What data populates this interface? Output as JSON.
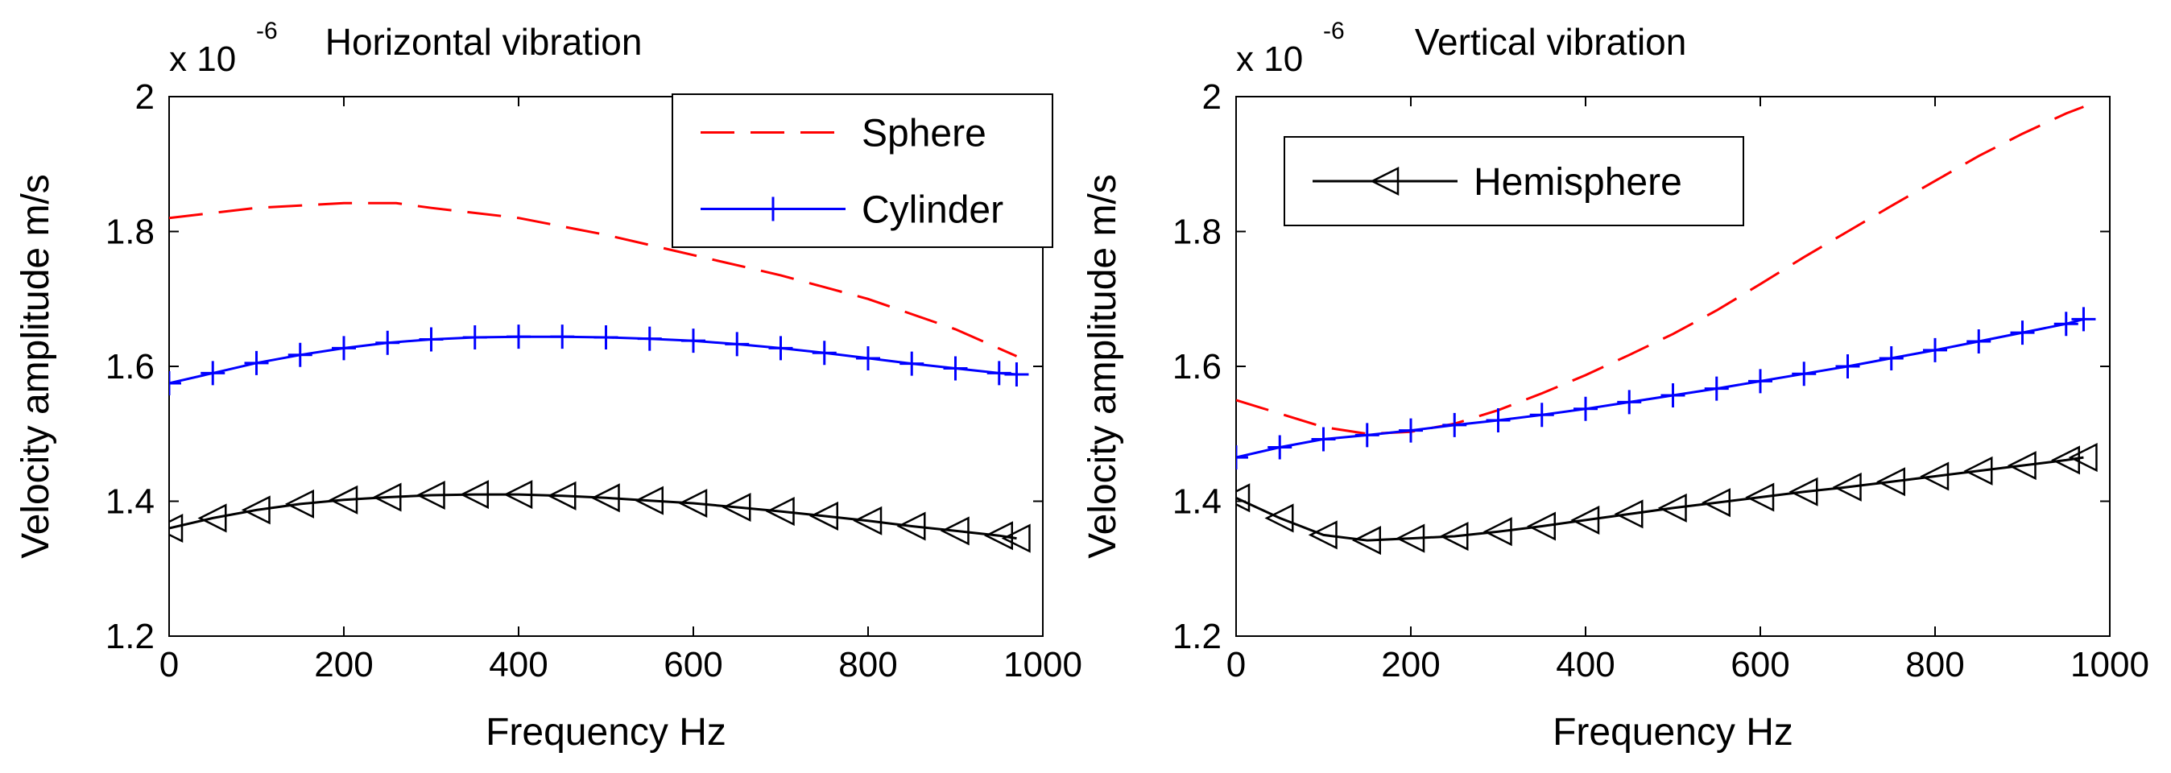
{
  "chart_data": [
    {
      "type": "line",
      "title": "Horizontal vibration",
      "xlabel": "Frequency Hz",
      "ylabel": "Velocity amplitude m/s",
      "scale_label": "x 10",
      "scale_exponent": "-6",
      "xlim": [
        0,
        1000
      ],
      "ylim": [
        1.2,
        2.0
      ],
      "x_ticks": [
        "0",
        "200",
        "400",
        "600",
        "800",
        "1000"
      ],
      "y_ticks": [
        "1.2",
        "1.4",
        "1.6",
        "1.8",
        "2"
      ],
      "legend": [
        "Sphere",
        "Cylinder"
      ],
      "series": [
        {
          "name": "Sphere",
          "color": "#ff0000",
          "style": "dashed",
          "marker": "none",
          "x": [
            0,
            100,
            200,
            260,
            300,
            400,
            500,
            600,
            700,
            800,
            900,
            970
          ],
          "values": [
            1.82,
            1.835,
            1.842,
            1.842,
            1.835,
            1.82,
            1.795,
            1.765,
            1.735,
            1.7,
            1.655,
            1.615
          ]
        },
        {
          "name": "Cylinder",
          "color": "#0000ff",
          "style": "solid",
          "marker": "plus",
          "x": [
            0,
            50,
            100,
            150,
            200,
            250,
            300,
            350,
            400,
            450,
            500,
            550,
            600,
            650,
            700,
            750,
            800,
            850,
            900,
            950,
            970
          ],
          "values": [
            1.575,
            1.59,
            1.605,
            1.617,
            1.627,
            1.635,
            1.64,
            1.643,
            1.644,
            1.644,
            1.643,
            1.641,
            1.638,
            1.633,
            1.627,
            1.62,
            1.612,
            1.604,
            1.597,
            1.59,
            1.588
          ]
        },
        {
          "name": "Hemisphere",
          "color": "#000000",
          "style": "solid",
          "marker": "triangle-left",
          "x": [
            0,
            50,
            100,
            150,
            200,
            250,
            300,
            350,
            400,
            450,
            500,
            550,
            600,
            650,
            700,
            750,
            800,
            850,
            900,
            950,
            970
          ],
          "values": [
            1.36,
            1.375,
            1.387,
            1.396,
            1.402,
            1.406,
            1.409,
            1.41,
            1.41,
            1.408,
            1.405,
            1.401,
            1.397,
            1.391,
            1.385,
            1.378,
            1.371,
            1.363,
            1.356,
            1.349,
            1.345
          ]
        }
      ]
    },
    {
      "type": "line",
      "title": "Vertical vibration",
      "xlabel": "Frequency Hz",
      "ylabel": "Velocity amplitude m/s",
      "scale_label": "x 10",
      "scale_exponent": "-6",
      "xlim": [
        0,
        1000
      ],
      "ylim": [
        1.2,
        2.0
      ],
      "x_ticks": [
        "0",
        "200",
        "400",
        "600",
        "800",
        "1000"
      ],
      "y_ticks": [
        "1.2",
        "1.4",
        "1.6",
        "1.8",
        "2"
      ],
      "legend": [
        "Hemisphere"
      ],
      "series": [
        {
          "name": "Sphere",
          "color": "#ff0000",
          "style": "dashed",
          "marker": "none",
          "x": [
            0,
            50,
            100,
            150,
            200,
            250,
            300,
            350,
            400,
            450,
            500,
            550,
            600,
            650,
            700,
            750,
            800,
            850,
            900,
            950,
            970
          ],
          "values": [
            1.55,
            1.53,
            1.51,
            1.5,
            1.503,
            1.515,
            1.535,
            1.56,
            1.587,
            1.617,
            1.648,
            1.683,
            1.722,
            1.762,
            1.8,
            1.838,
            1.875,
            1.912,
            1.945,
            1.975,
            1.985
          ]
        },
        {
          "name": "Cylinder",
          "color": "#0000ff",
          "style": "solid",
          "marker": "plus",
          "x": [
            0,
            50,
            100,
            150,
            200,
            250,
            300,
            350,
            400,
            450,
            500,
            550,
            600,
            650,
            700,
            750,
            800,
            850,
            900,
            950,
            970
          ],
          "values": [
            1.465,
            1.48,
            1.492,
            1.498,
            1.505,
            1.513,
            1.52,
            1.528,
            1.537,
            1.547,
            1.557,
            1.567,
            1.578,
            1.589,
            1.6,
            1.612,
            1.624,
            1.637,
            1.65,
            1.663,
            1.67
          ]
        },
        {
          "name": "Hemisphere",
          "color": "#000000",
          "style": "solid",
          "marker": "triangle-left",
          "x": [
            0,
            50,
            100,
            150,
            200,
            250,
            300,
            350,
            400,
            450,
            500,
            550,
            600,
            650,
            700,
            750,
            800,
            850,
            900,
            950,
            970
          ],
          "values": [
            1.405,
            1.375,
            1.35,
            1.342,
            1.345,
            1.348,
            1.355,
            1.363,
            1.372,
            1.381,
            1.39,
            1.398,
            1.406,
            1.414,
            1.421,
            1.429,
            1.437,
            1.445,
            1.453,
            1.461,
            1.465
          ]
        }
      ]
    }
  ]
}
